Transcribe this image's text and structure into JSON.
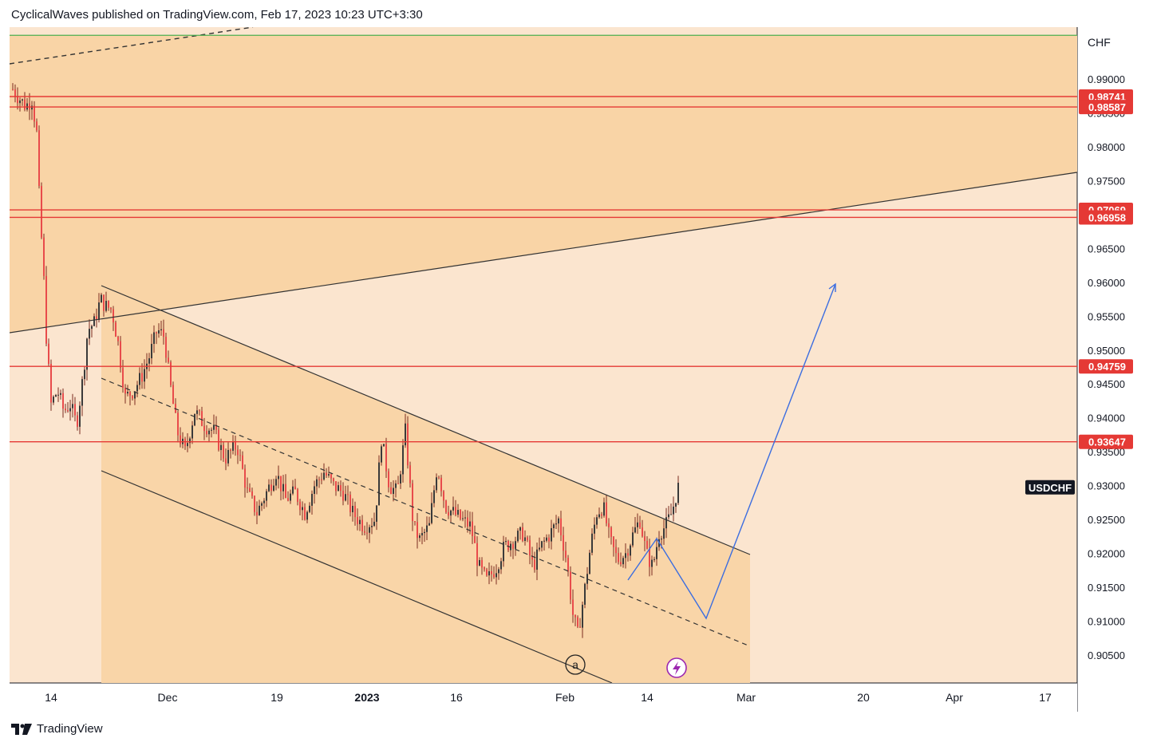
{
  "header": {
    "text": "CyclicalWaves published on TradingView.com, Feb 17, 2023 10:23 UTC+3:30"
  },
  "footer": {
    "brand": "TradingView"
  },
  "colors": {
    "zone_top": "#f9d4a6",
    "zone_bg": "#fbe5cf",
    "channel_fill": "#f9d5a8",
    "candle": "#e84b4b",
    "level_line": "#e53935",
    "green_line": "#4caf50",
    "projection": "#3b6de0",
    "badge_bg": "#e53935"
  },
  "chart_data": {
    "type": "candlestick",
    "symbol": "USDCHF",
    "currency": "CHF",
    "x_ticks": [
      "14",
      "Dec",
      "19",
      "2023",
      "16",
      "Feb",
      "14",
      "Mar",
      "20",
      "Apr",
      "17"
    ],
    "y_ticks": [
      "0.99000",
      "0.98500",
      "0.98000",
      "0.97500",
      "0.97000",
      "0.96500",
      "0.96000",
      "0.95500",
      "0.95000",
      "0.94500",
      "0.94000",
      "0.93500",
      "0.93000",
      "0.92500",
      "0.92000",
      "0.91500",
      "0.91000",
      "0.90500"
    ],
    "y_values": [
      0.99,
      0.985,
      0.98,
      0.975,
      0.97,
      0.965,
      0.96,
      0.955,
      0.95,
      0.945,
      0.94,
      0.935,
      0.93,
      0.925,
      0.92,
      0.915,
      0.91,
      0.905
    ],
    "horizontal_levels": [
      {
        "label": "0.98741",
        "value": 0.98741
      },
      {
        "label": "0.98587",
        "value": 0.98587
      },
      {
        "label": "0.97069",
        "value": 0.97069
      },
      {
        "label": "0.96958",
        "value": 0.96958
      },
      {
        "label": "0.94759",
        "value": 0.94759
      },
      {
        "label": "0.93647",
        "value": 0.93647
      }
    ],
    "green_level": 0.99645,
    "price_label": "USDCHF",
    "last_price": 0.92975,
    "wave_label": "a",
    "ylim": [
      0.9015,
      0.997
    ]
  }
}
